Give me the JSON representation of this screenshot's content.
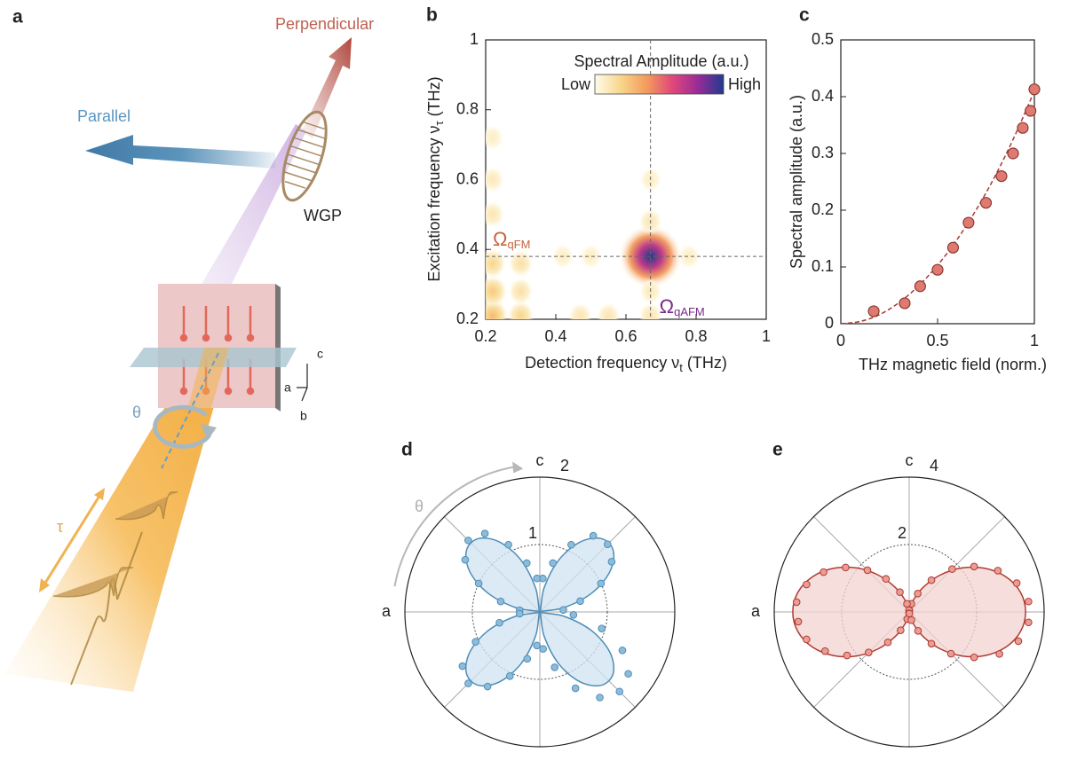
{
  "panel_labels": [
    "a",
    "b",
    "c",
    "d",
    "e"
  ],
  "schematic": {
    "perpendicular": "Perpendicular",
    "parallel": "Parallel",
    "polarizer": "WGP",
    "rotation": "θ",
    "delay": "τ",
    "axes": [
      "c",
      "a",
      "b"
    ]
  },
  "chart_data": [
    {
      "type": "heatmap",
      "x_label": {
        "text": "Detection frequency ν",
        "sub": "t",
        "unit": "(THz)"
      },
      "y_label": {
        "text": "Excitation frequency ν",
        "sub": "τ",
        "unit": "(THz)"
      },
      "colorbar": {
        "title": "Spectral Amplitude (a.u.)",
        "low": "Low",
        "high": "High"
      },
      "colormap": [
        "#fffbea",
        "#f8d68c",
        "#f39c5c",
        "#e0487a",
        "#9a2b98",
        "#1f3b90"
      ],
      "x": [
        0.67,
        0.22,
        0.3,
        0.22,
        0.3,
        0.22,
        0.3,
        0.22,
        0.22,
        0.22,
        0.47,
        0.55,
        0.42,
        0.5,
        0.67,
        0.67,
        0.67,
        0.67,
        0.78
      ],
      "y": [
        0.38,
        0.21,
        0.21,
        0.28,
        0.28,
        0.36,
        0.36,
        0.5,
        0.6,
        0.72,
        0.21,
        0.21,
        0.38,
        0.38,
        0.21,
        0.28,
        0.48,
        0.6,
        0.38
      ],
      "values": [
        1,
        0.3,
        0.2,
        0.25,
        0.15,
        0.2,
        0.15,
        0.12,
        0.1,
        0.08,
        0.12,
        0.12,
        0.08,
        0.08,
        0.12,
        0.1,
        0.12,
        0.08,
        0.08
      ],
      "xlim": [
        0.2,
        1
      ],
      "ylim": [
        0.2,
        1
      ],
      "xticks": [
        0.2,
        0.4,
        0.6,
        0.8,
        1
      ],
      "yticks": [
        0.2,
        0.4,
        0.6,
        0.8,
        1
      ],
      "crosshair": {
        "x": 0.67,
        "y": 0.38
      },
      "annotations": [
        {
          "symbol": "Ω",
          "sub": "qFM",
          "color": "#c8643c"
        },
        {
          "symbol": "Ω",
          "sub": "qAFM",
          "color": "#7a2a8a"
        }
      ]
    },
    {
      "type": "scatter",
      "xlabel": "THz magnetic field (norm.)",
      "ylabel": "Spectral amplitude (a.u.)",
      "xlim": [
        0,
        1
      ],
      "ylim": [
        0,
        0.5
      ],
      "xticks": [
        0,
        0.5,
        1
      ],
      "yticks": [
        0,
        0.1,
        0.2,
        0.3,
        0.4,
        0.5
      ],
      "series": [
        {
          "style": "dashed-line",
          "color": "#a83a32",
          "x": [
            0,
            0.1,
            0.2,
            0.3,
            0.4,
            0.5,
            0.6,
            0.7,
            0.8,
            0.9,
            1
          ],
          "values": [
            0,
            0.004,
            0.016,
            0.037,
            0.066,
            0.103,
            0.148,
            0.201,
            0.262,
            0.332,
            0.41
          ]
        },
        {
          "style": "points",
          "color": "#df7a70",
          "x": [
            0.17,
            0.33,
            0.41,
            0.5,
            0.58,
            0.66,
            0.75,
            0.83,
            0.89,
            0.94,
            0.98,
            1
          ],
          "values": [
            0.022,
            0.036,
            0.066,
            0.095,
            0.134,
            0.178,
            0.213,
            0.26,
            0.3,
            0.345,
            0.375,
            0.413
          ]
        }
      ]
    },
    {
      "type": "polar",
      "rlim": [
        0,
        2
      ],
      "rticks": [
        1,
        2
      ],
      "angle_labels": {
        "top": "c",
        "left": "a"
      },
      "rotation_label": "θ",
      "series": [
        {
          "style": "filled-line",
          "color": "#4f8db8",
          "fill": "#cfe3f0",
          "theta": [
            0,
            10,
            20,
            30,
            40,
            50,
            60,
            70,
            80,
            90,
            100,
            110,
            120,
            130,
            140,
            150,
            160,
            170,
            180,
            190,
            200,
            210,
            220,
            230,
            240,
            250,
            260,
            270,
            280,
            290,
            300,
            310,
            320,
            330,
            340,
            350
          ],
          "values": [
            0,
            0.36,
            0.82,
            1.2,
            1.42,
            1.42,
            1.2,
            0.82,
            0.36,
            0,
            0.36,
            0.82,
            1.2,
            1.42,
            1.42,
            1.2,
            0.82,
            0.36,
            0,
            0.36,
            0.82,
            1.2,
            1.42,
            1.42,
            1.2,
            0.82,
            0.36,
            0,
            0.36,
            0.82,
            1.2,
            1.42,
            1.42,
            1.2,
            0.82,
            0.36
          ]
        },
        {
          "style": "points",
          "color": "#8dbcdb",
          "theta": [
            5,
            15,
            25,
            35,
            45,
            55,
            65,
            75,
            85,
            95,
            105,
            115,
            125,
            135,
            145,
            155,
            165,
            175,
            185,
            195,
            205,
            215,
            225,
            235,
            245,
            255,
            265,
            275,
            285,
            295,
            305,
            315,
            325,
            335,
            345,
            355
          ],
          "values": [
            0.35,
            0.62,
            1,
            1.3,
            1.42,
            1.38,
            1.1,
            0.75,
            0.5,
            0.5,
            0.75,
            1.1,
            1.42,
            1.5,
            1.35,
            1,
            0.6,
            0.3,
            0.3,
            0.62,
            1.05,
            1.4,
            1.5,
            1.35,
            1.05,
            0.72,
            0.5,
            0.55,
            0.85,
            1.25,
            1.55,
            1.67,
            1.6,
            1.35,
            0.95,
            0.5
          ]
        }
      ]
    },
    {
      "type": "polar",
      "rlim": [
        0,
        4
      ],
      "rticks": [
        2,
        4
      ],
      "angle_labels": {
        "top": "c",
        "left": "a"
      },
      "series": [
        {
          "style": "filled-line",
          "color": "#b03a32",
          "fill": "#f3d3d0",
          "theta": [
            0,
            10,
            20,
            30,
            40,
            50,
            60,
            70,
            80,
            90,
            100,
            110,
            120,
            130,
            140,
            150,
            160,
            170,
            180,
            190,
            200,
            210,
            220,
            230,
            240,
            250,
            260,
            270,
            280,
            290,
            300,
            310,
            320,
            330,
            340,
            350
          ],
          "values": [
            3.45,
            3.35,
            3.05,
            2.59,
            2.03,
            1.43,
            0.86,
            0.4,
            0.1,
            0,
            0.1,
            0.4,
            0.86,
            1.43,
            2.03,
            2.59,
            3.05,
            3.35,
            3.45,
            3.35,
            3.05,
            2.59,
            2.03,
            1.43,
            0.86,
            0.4,
            0.1,
            0,
            0.1,
            0.4,
            0.86,
            1.43,
            2.03,
            2.59,
            3.05,
            3.35
          ]
        },
        {
          "style": "points",
          "color": "#eb9c94",
          "theta": [
            5,
            15,
            25,
            35,
            45,
            55,
            65,
            75,
            85,
            95,
            105,
            115,
            125,
            135,
            145,
            155,
            165,
            175,
            185,
            195,
            205,
            215,
            225,
            235,
            245,
            255,
            265,
            275,
            285,
            295,
            305,
            315,
            325,
            335,
            345,
            355
          ],
          "values": [
            3.55,
            3.3,
            2.9,
            2.35,
            1.8,
            1.15,
            0.6,
            0.25,
            0.05,
            0.05,
            0.25,
            0.65,
            1.2,
            1.75,
            2.3,
            2.8,
            3.15,
            3.35,
            3.3,
            3.15,
            2.75,
            2.25,
            1.7,
            1.1,
            0.6,
            0.22,
            0.04,
            0.05,
            0.25,
            0.62,
            1.15,
            1.75,
            2.35,
            2.95,
            3.35,
            3.55
          ]
        }
      ]
    }
  ]
}
